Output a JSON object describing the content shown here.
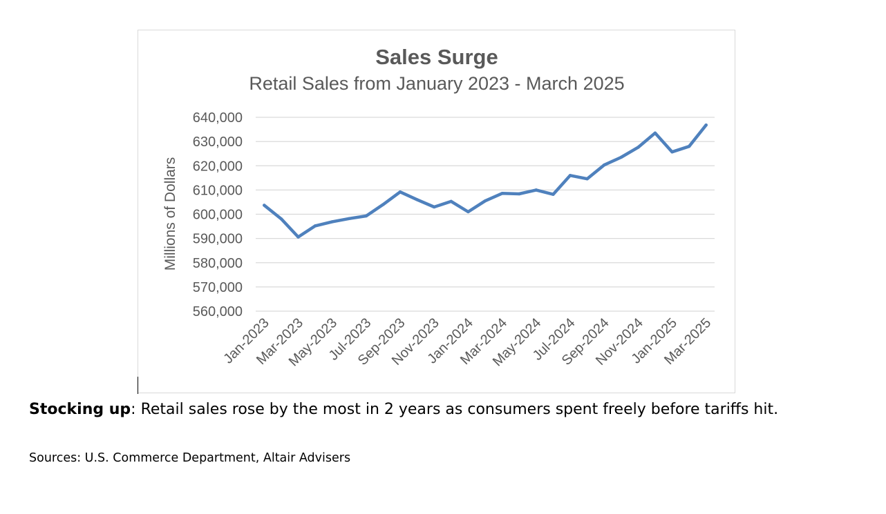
{
  "chart_data": {
    "type": "line",
    "title": "Sales Surge",
    "subtitle": "Retail Sales from January 2023 - March 2025",
    "xlabel": "",
    "ylabel": "Millions of Dollars",
    "ylim": [
      560000,
      640000
    ],
    "y_ticks": [
      "560,000",
      "570,000",
      "580,000",
      "590,000",
      "600,000",
      "610,000",
      "620,000",
      "630,000",
      "640,000"
    ],
    "x_tick_labels": [
      "Jan-2023",
      "Mar-2023",
      "May-2023",
      "Jul-2023",
      "Sep-2023",
      "Nov-2023",
      "Jan-2024",
      "Mar-2024",
      "May-2024",
      "Jul-2024",
      "Sep-2024",
      "Nov-2024",
      "Jan-2025",
      "Mar-2025"
    ],
    "grid": true,
    "legend": "none",
    "series_color": "#4f81bd",
    "categories": [
      "Jan-2023",
      "Feb-2023",
      "Mar-2023",
      "Apr-2023",
      "May-2023",
      "Jun-2023",
      "Jul-2023",
      "Aug-2023",
      "Sep-2023",
      "Oct-2023",
      "Nov-2023",
      "Dec-2023",
      "Jan-2024",
      "Feb-2024",
      "Mar-2024",
      "Apr-2024",
      "May-2024",
      "Jun-2024",
      "Jul-2024",
      "Aug-2024",
      "Sep-2024",
      "Oct-2024",
      "Nov-2024",
      "Dec-2024",
      "Jan-2025",
      "Feb-2025",
      "Mar-2025"
    ],
    "values": [
      603700,
      598100,
      590600,
      595200,
      596900,
      598200,
      599300,
      604000,
      609200,
      606000,
      603000,
      605300,
      601000,
      605500,
      608600,
      608400,
      610000,
      608200,
      616000,
      614600,
      620300,
      623500,
      627600,
      633500,
      625700,
      628000,
      636800
    ]
  },
  "caption": {
    "lead": "Stocking up",
    "text": ": Retail sales rose by the most in 2 years as consumers spent freely before tariffs hit."
  },
  "sources": "Sources: U.S. Commerce Department, Altair Advisers"
}
